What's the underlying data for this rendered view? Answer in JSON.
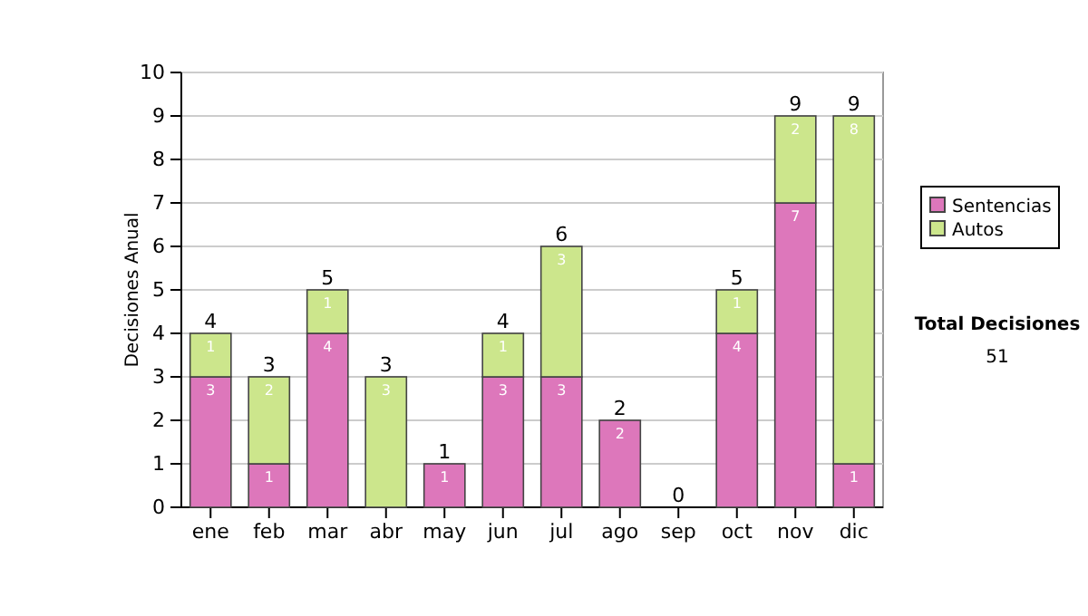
{
  "chart_data": {
    "type": "bar",
    "stacked": true,
    "categories": [
      "ene",
      "feb",
      "mar",
      "abr",
      "may",
      "jun",
      "jul",
      "ago",
      "sep",
      "oct",
      "nov",
      "dic"
    ],
    "ylabel": "Decisiones Anual",
    "ylim": [
      0,
      10
    ],
    "yticks": [
      0,
      1,
      2,
      3,
      4,
      5,
      6,
      7,
      8,
      9,
      10
    ],
    "grid": "y",
    "legend": "right",
    "series": [
      {
        "name": "Sentencias",
        "color": "#dd77bb",
        "values": [
          3,
          1,
          4,
          0,
          1,
          3,
          3,
          2,
          0,
          4,
          7,
          1
        ],
        "value_labels": [
          "3",
          "1",
          "4",
          null,
          "1",
          "3",
          "3",
          "2",
          null,
          "4",
          "7",
          "1"
        ]
      },
      {
        "name": "Autos",
        "color": "#cce68c",
        "values": [
          1,
          2,
          1,
          3,
          0,
          1,
          3,
          0,
          0,
          1,
          2,
          8
        ],
        "value_labels": [
          "1",
          "2",
          "1",
          "3",
          null,
          "1",
          "3",
          null,
          null,
          "1",
          "2",
          "8"
        ]
      }
    ],
    "totals": [
      "4",
      "3",
      "5",
      "3",
      "1",
      "4",
      "6",
      "2",
      "0",
      "5",
      "9",
      "9"
    ],
    "annotations": [
      "Total Decisiones",
      "51"
    ]
  }
}
